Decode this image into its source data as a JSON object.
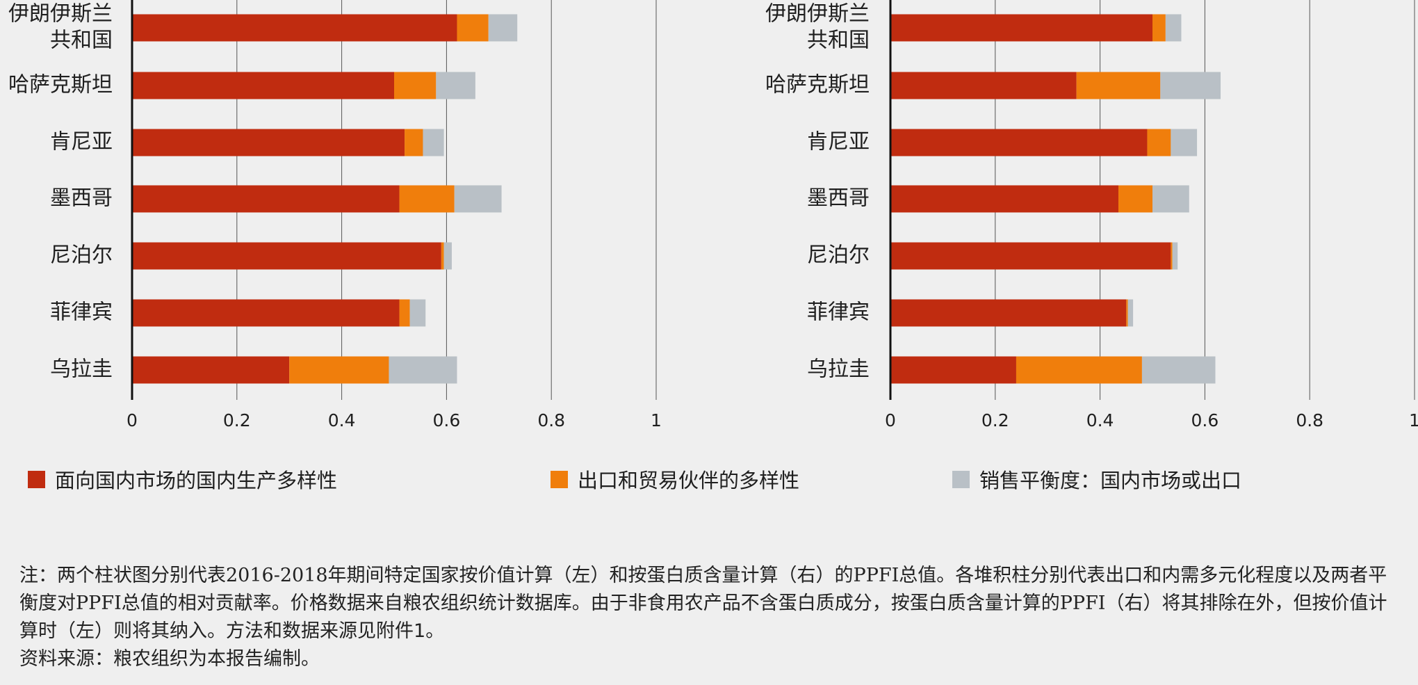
{
  "colors": {
    "domestic": "#c02c10",
    "export": "#f07e0c",
    "balance": "#b9c0c6",
    "axis": "#111111",
    "grid": "#555555"
  },
  "legend": {
    "domestic": "面向国内市场的国内生产多样性",
    "export": "出口和贸易伙伴的多样性",
    "balance": "销售平衡度：国内市场或出口"
  },
  "notes": {
    "note_text": "注：两个柱状图分别代表2016-2018年期间特定国家按价值计算（左）和按蛋白质含量计算（右）的PPFI总值。各堆积柱分别代表出口和内需多元化程度以及两者平衡度对PPFI总值的相对贡献率。价格数据来自粮农组织统计数据库。由于非食用农产品不含蛋白质成分，按蛋白质含量计算的PPFI（右）将其排除在外，但按价值计算时（左）则将其纳入。方法和数据来源见",
    "note_link": "附件1",
    "note_end": "。",
    "source": "资料来源：粮农组织为本报告编制。"
  },
  "chart_data": [
    {
      "type": "bar",
      "orientation": "horizontal",
      "stacked": true,
      "categories": [
        "伊朗伊斯兰\n共和国",
        "哈萨克斯坦",
        "肯尼亚",
        "墨西哥",
        "尼泊尔",
        "菲律宾",
        "乌拉圭"
      ],
      "series": [
        {
          "name": "面向国内市场的国内生产多样性",
          "values": [
            0.62,
            0.5,
            0.52,
            0.51,
            0.59,
            0.51,
            0.3
          ]
        },
        {
          "name": "出口和贸易伙伴的多样性",
          "values": [
            0.06,
            0.08,
            0.035,
            0.105,
            0.005,
            0.02,
            0.19
          ]
        },
        {
          "name": "销售平衡度：国内市场或出口",
          "values": [
            0.055,
            0.075,
            0.04,
            0.09,
            0.015,
            0.03,
            0.13
          ]
        }
      ],
      "x_ticks": [
        "0",
        "0.2",
        "0.4",
        "0.6",
        "0.8",
        "1"
      ],
      "xlim": [
        0,
        1
      ],
      "grid": true
    },
    {
      "type": "bar",
      "orientation": "horizontal",
      "stacked": true,
      "categories": [
        "伊朗伊斯兰\n共和国",
        "哈萨克斯坦",
        "肯尼亚",
        "墨西哥",
        "尼泊尔",
        "菲律宾",
        "乌拉圭"
      ],
      "series": [
        {
          "name": "面向国内市场的国内生产多样性",
          "values": [
            0.5,
            0.355,
            0.49,
            0.435,
            0.535,
            0.45,
            0.24
          ]
        },
        {
          "name": "出口和贸易伙伴的多样性",
          "values": [
            0.025,
            0.16,
            0.045,
            0.065,
            0.003,
            0.003,
            0.24
          ]
        },
        {
          "name": "销售平衡度：国内市场或出口",
          "values": [
            0.03,
            0.115,
            0.05,
            0.07,
            0.01,
            0.01,
            0.14
          ]
        }
      ],
      "x_ticks": [
        "0",
        "0.2",
        "0.4",
        "0.6",
        "0.8",
        "1"
      ],
      "xlim": [
        0,
        1
      ],
      "grid": true
    }
  ]
}
